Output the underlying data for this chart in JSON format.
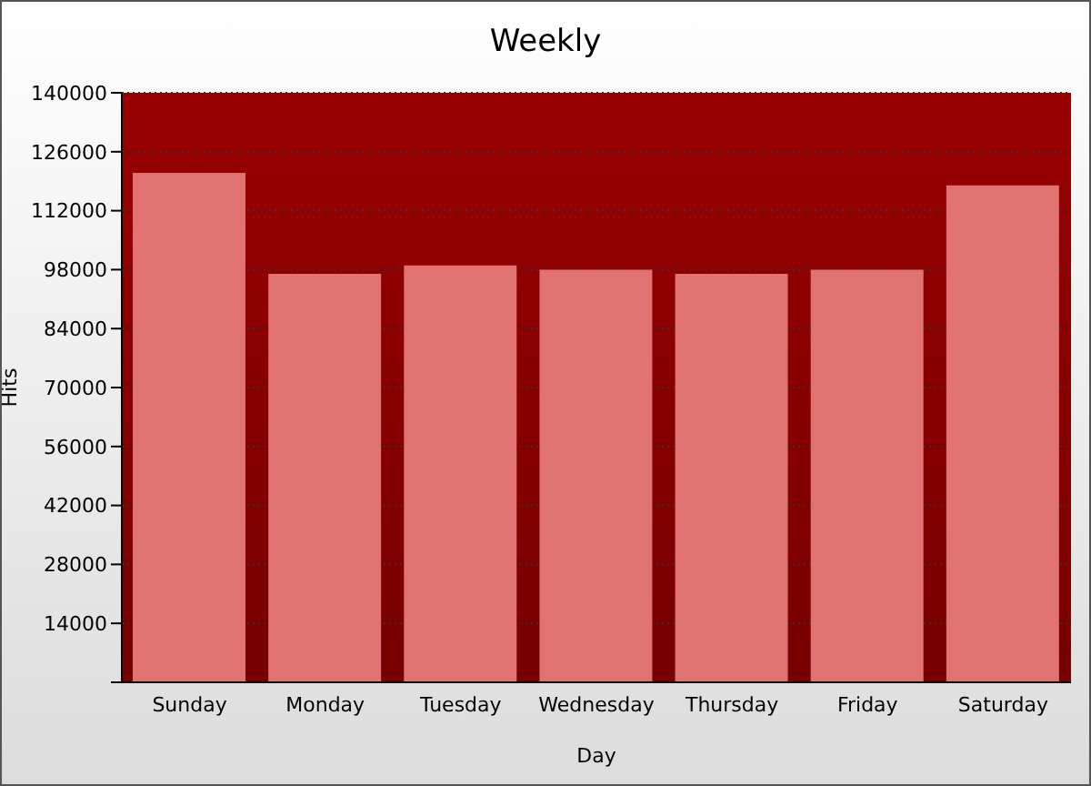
{
  "chart_data": {
    "type": "bar",
    "title": "Weekly",
    "xlabel": "Day",
    "ylabel": "Hits",
    "categories": [
      "Sunday",
      "Monday",
      "Tuesday",
      "Wednesday",
      "Thursday",
      "Friday",
      "Saturday"
    ],
    "values": [
      121000,
      97000,
      99000,
      98000,
      97000,
      98000,
      118000
    ],
    "color": "#e07272",
    "ylim": [
      0,
      140000
    ],
    "yticks": [
      {
        "value": 0,
        "label": null
      },
      14000,
      28000,
      42000,
      56000,
      70000,
      84000,
      98000,
      112000,
      126000,
      140000
    ],
    "grid": "y"
  }
}
